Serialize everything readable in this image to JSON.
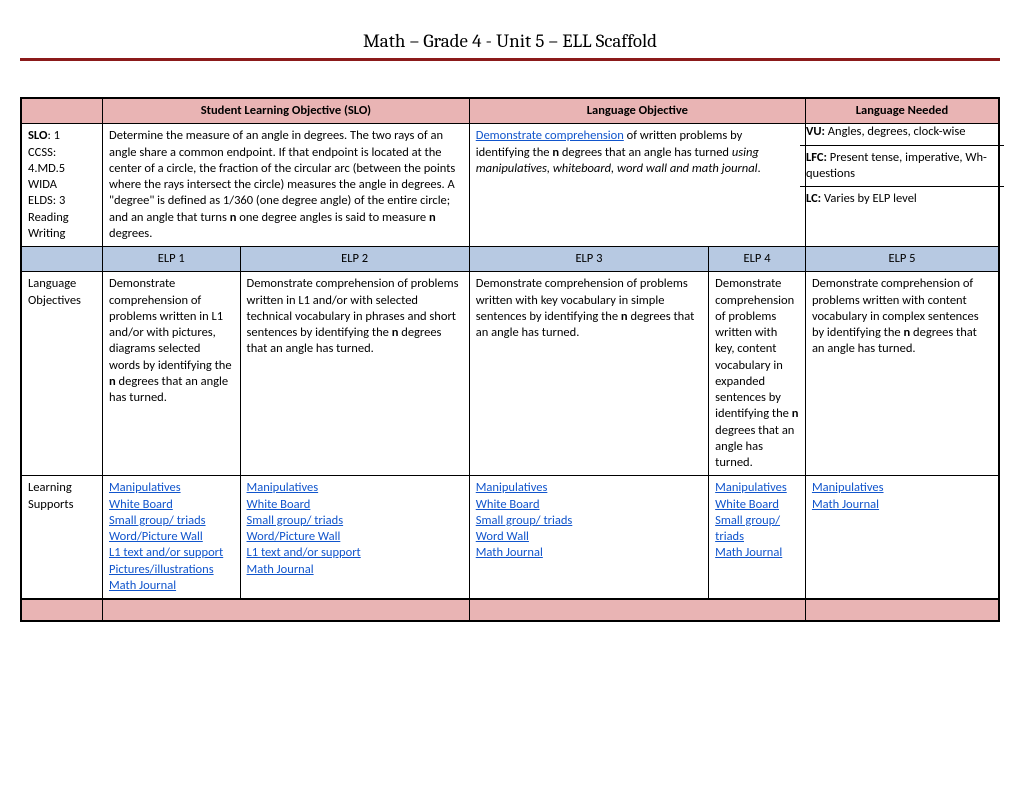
{
  "title": "Math – Grade 4 - Unit 5 – ELL Scaffold",
  "headers": {
    "slo": "Student Learning Objective (SLO)",
    "langObj": "Language Objective",
    "langNeeded": "Language Needed"
  },
  "leftMeta": {
    "sloLabel": "SLO",
    "sloNum": ": 1",
    "ccssLabel": "CCSS:",
    "ccssCode": "4.MD.5",
    "widaLabel": "WIDA",
    "eldsLabel": "ELDS: 3",
    "reading": "Reading",
    "writing": "Writing"
  },
  "sloText": {
    "p1": "Determine the measure of an angle in degrees. The two rays of an angle share a common endpoint. If that endpoint is located at the center of a circle, the fraction of the circular arc (between the points where the rays intersect the circle) measures the angle in degrees. A \"degree\" is defined as 1/360 (one degree angle) of the entire circle; and an angle that turns ",
    "bold_n1": "n",
    "p2": " one degree angles is said to measure ",
    "bold_n2": "n",
    "p3": " degrees."
  },
  "langObjText": {
    "link": "Demonstrate comprehension",
    "mid1": " of written problems by identifying the ",
    "n": "n",
    "mid2": " degrees that an angle has turned ",
    "using": "using manipulatives, whiteboard, word wall and math journal",
    "period": "."
  },
  "langNeeded": {
    "vuLabel": "VU:",
    "vuText": " Angles, degrees, clock-wise",
    "lfcLabel": "LFC:",
    "lfcText": " Present tense, imperative, Wh- questions",
    "lcLabel": "LC:",
    "lcText": " Varies by ELP level"
  },
  "elpHeaders": [
    "ELP 1",
    "ELP 2",
    "ELP 3",
    "ELP 4",
    "ELP 5"
  ],
  "rowLabels": {
    "langObj": "Language Objectives",
    "learnSup": "Learning Supports"
  },
  "langObjectivesRow": [
    {
      "pre": "Demonstrate comprehension of problems written in L1 and/or with pictures, diagrams selected words by identifying the ",
      "n": "n",
      "post": " degrees that an angle has turned."
    },
    {
      "pre": "Demonstrate comprehension of problems written in L1 and/or with selected technical vocabulary in phrases and short sentences by identifying the ",
      "n": "n",
      "post": " degrees that an angle has turned."
    },
    {
      "pre": "Demonstrate comprehension of problems written with key vocabulary in simple sentences by identifying the ",
      "n": "n",
      "post": " degrees that an angle has turned."
    },
    {
      "pre": "Demonstrate comprehension of problems written with key, content vocabulary in expanded sentences by identifying the ",
      "n": "n",
      "post": " degrees that an angle has turned."
    },
    {
      "pre": "Demonstrate comprehension of problems written with content vocabulary in complex sentences by identifying the ",
      "n": "n",
      "post": " degrees that an angle has turned."
    }
  ],
  "supports": [
    [
      "Manipulatives",
      "White Board",
      "Small group/ triads",
      "Word/Picture Wall",
      "L1 text and/or support",
      "Pictures/illustrations",
      "Math Journal"
    ],
    [
      "Manipulatives",
      "White Board",
      "Small group/ triads",
      "Word/Picture Wall",
      "L1 text and/or support",
      "Math Journal"
    ],
    [
      "Manipulatives",
      "White Board",
      "Small group/ triads",
      "Word Wall",
      "Math Journal"
    ],
    [
      "Manipulatives",
      "White Board",
      "Small group/ triads",
      "Math Journal"
    ],
    [
      "Manipulatives",
      "Math Journal"
    ]
  ],
  "colors": {
    "pink": "#e9b4b4",
    "blue": "#b7c9e2",
    "rule": "#8b1a1a",
    "link": "#1155cc"
  }
}
